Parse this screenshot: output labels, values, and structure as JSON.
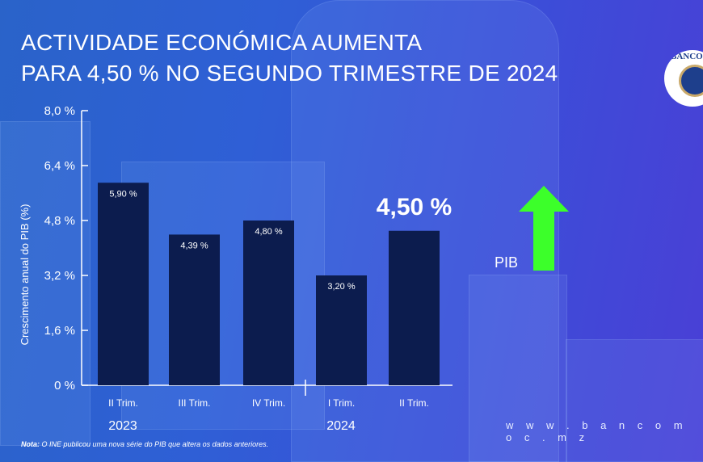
{
  "title_line1": "ACTIVIDADE ECONÓMICA AUMENTA",
  "title_line2": "PARA 4,50 % NO SEGUNDO TRIMESTRE DE 2024",
  "logo_text": "BANCO DE MOÇAMBIQUE",
  "website": "w w w . b a n c o m o c . m z",
  "note_label": "Nota:",
  "note_text": " O INE publicou uma nova série do PIB que altera os dados anteriores.",
  "colors": {
    "bar": "#0c1c4e",
    "arrow": "#3cff2a",
    "text": "#ffffff"
  },
  "chart_data": {
    "type": "bar",
    "ylabel": "Crescimento anual do PIB (%)",
    "ylim": [
      0,
      8
    ],
    "yticks": [
      "0 %",
      "1,6 %",
      "3,2 %",
      "4,8 %",
      "6,4 %",
      "8,0 %"
    ],
    "ytick_values": [
      0,
      1.6,
      3.2,
      4.8,
      6.4,
      8.0
    ],
    "categories": [
      "II Trim.",
      "III Trim.",
      "IV Trim.",
      "I Trim.",
      "II Trim."
    ],
    "year_groups": [
      "2023",
      "2024"
    ],
    "values": [
      5.9,
      4.39,
      4.8,
      3.2,
      4.5
    ],
    "data_labels": [
      "5,90 %",
      "4,39 %",
      "4,80 %",
      "3,20 %",
      "4,50 %"
    ],
    "grid": false,
    "annotation": {
      "label": "PIB",
      "icon": "arrow-up-icon"
    }
  }
}
